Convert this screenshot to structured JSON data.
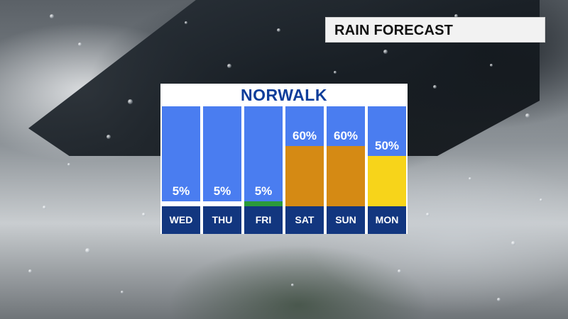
{
  "header": {
    "title": "RAIN FORECAST"
  },
  "chart_data": {
    "type": "bar",
    "title": "NORWALK",
    "categories": [
      "WED",
      "THU",
      "FRI",
      "SAT",
      "SUN",
      "MON"
    ],
    "values": [
      5,
      5,
      5,
      60,
      60,
      50
    ],
    "value_labels": [
      "5%",
      "5%",
      "5%",
      "60%",
      "60%",
      "50%"
    ],
    "ylim": [
      0,
      100
    ],
    "bar_colors": [
      "#ffffff",
      "#ffffff",
      "#2a9a3a",
      "#d58a14",
      "#d58a14",
      "#f7d41a"
    ],
    "background_color": "#4a7df0",
    "day_bar_color": "#12367f",
    "title_color": "#0e3d9a"
  }
}
